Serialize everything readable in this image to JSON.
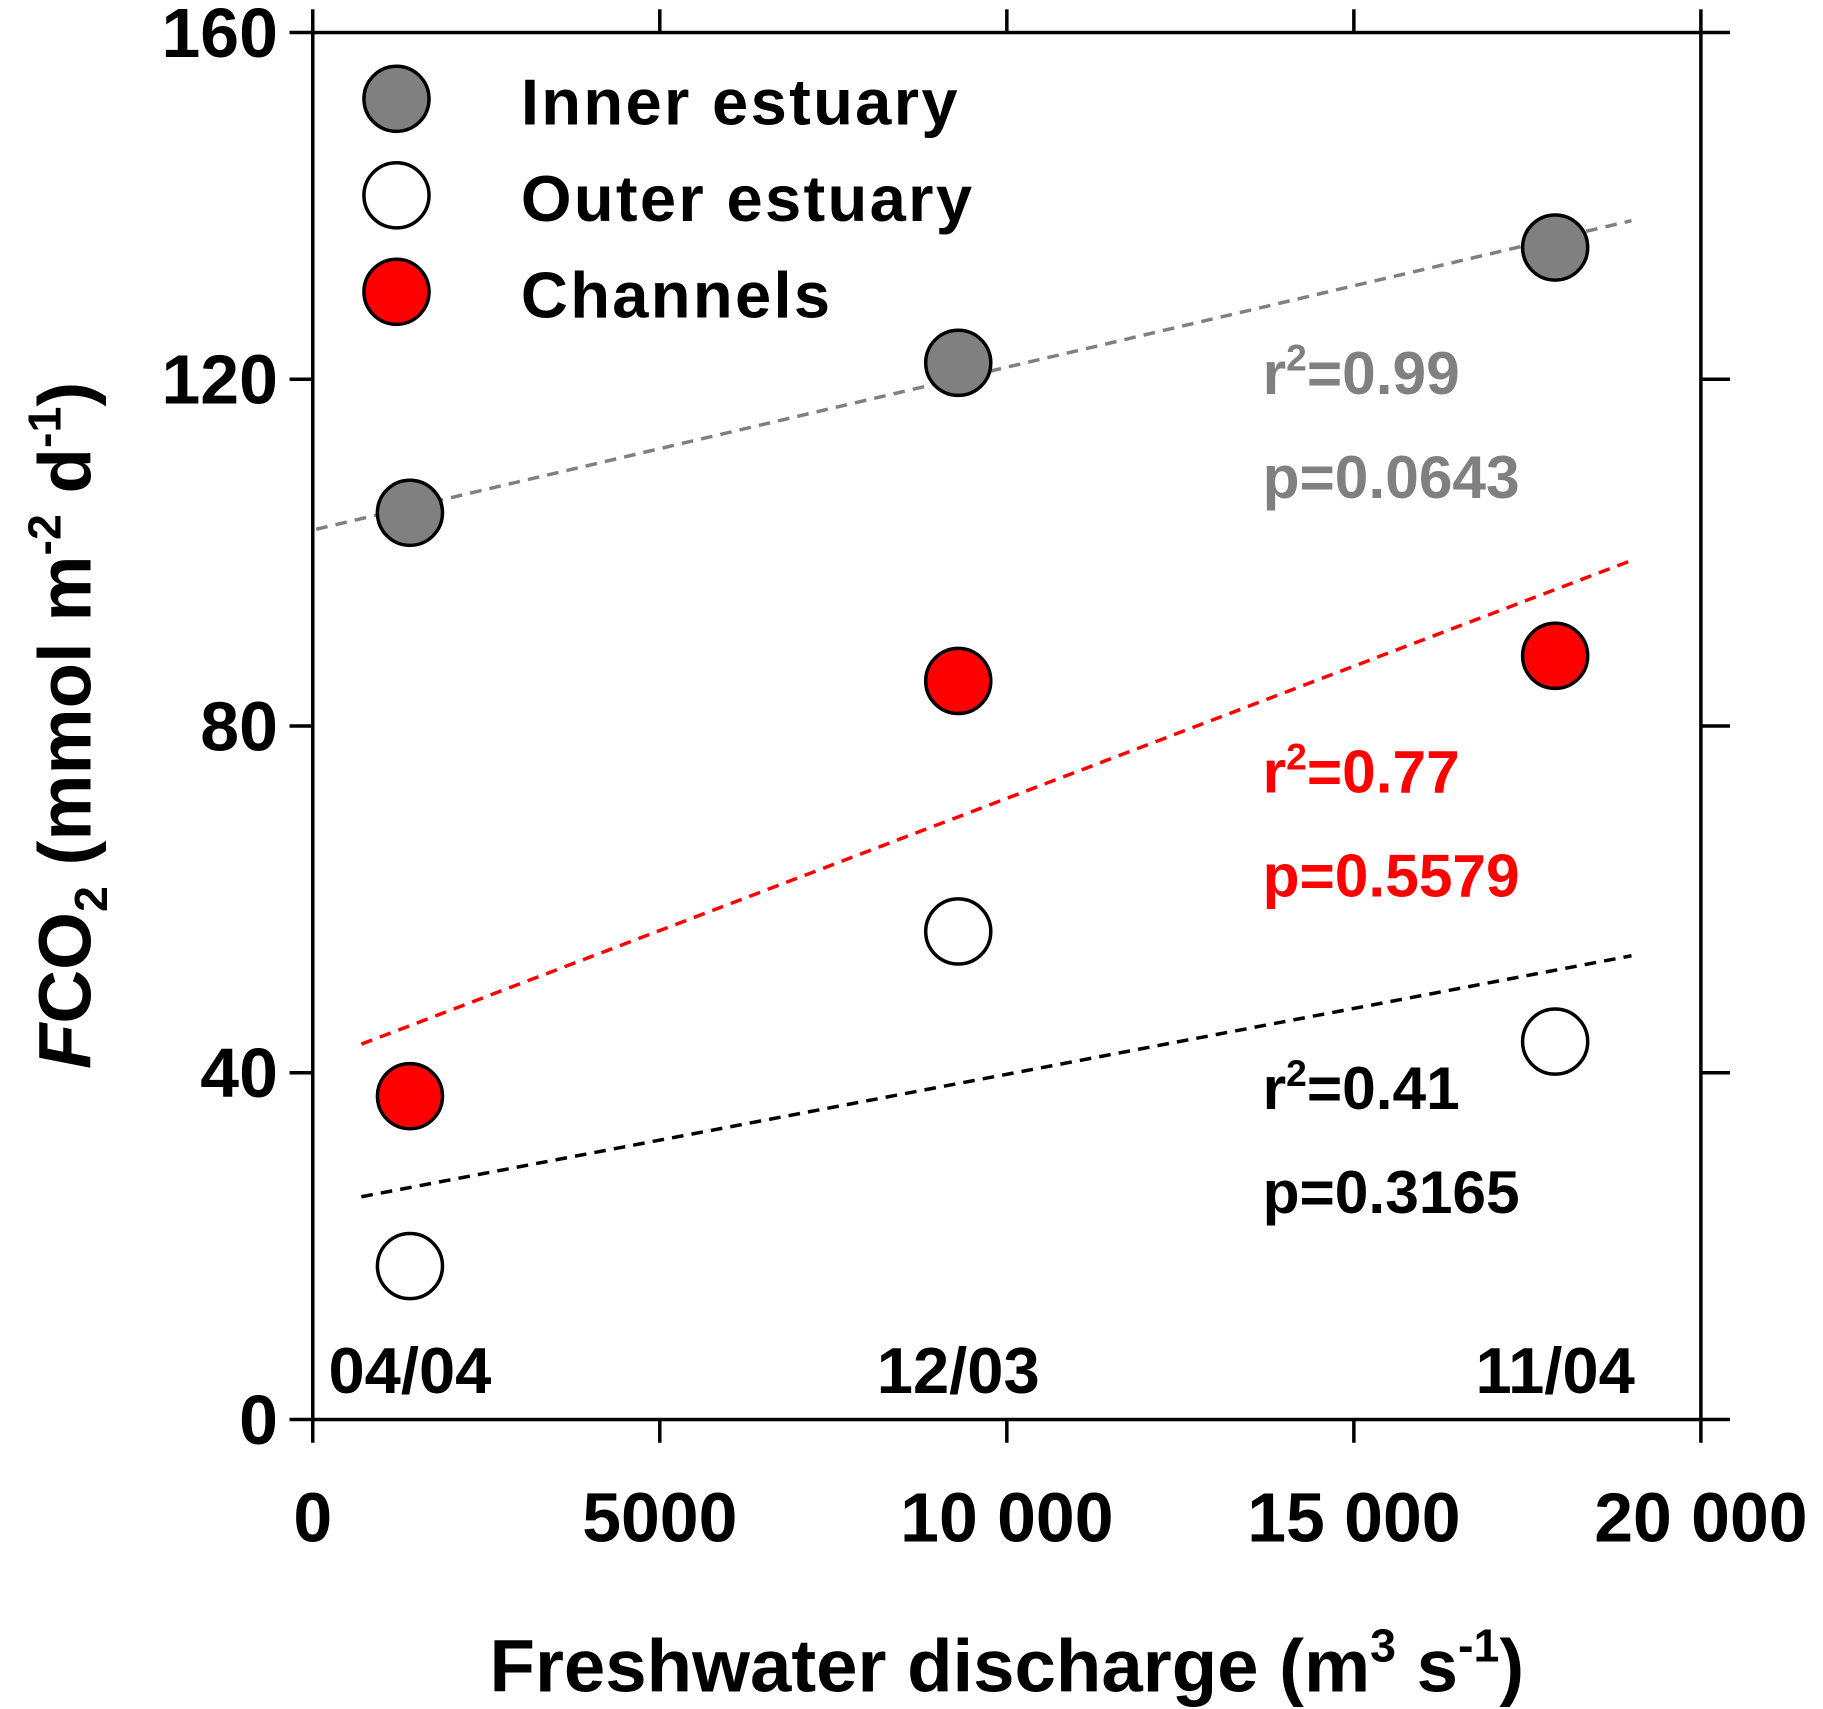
{
  "chart_data": {
    "type": "scatter",
    "xlabel": "Freshwater discharge (m",
    "xlabel_sup1": "3",
    "xlabel_mid": " s",
    "xlabel_sup2": "-1",
    "xlabel_end": ")",
    "ylabel_italic": "F",
    "ylabel_co": "CO",
    "ylabel_sub": "2",
    "ylabel_rest": " (mmol m",
    "ylabel_sup1": "-2",
    "ylabel_mid": " d",
    "ylabel_sup2": "-1",
    "ylabel_end": ")",
    "xlim": [
      0,
      20000
    ],
    "ylim": [
      0,
      160
    ],
    "x_ticks": [
      0,
      5000,
      10000,
      15000,
      20000
    ],
    "x_tick_labels": [
      "0",
      "5000",
      "10 000",
      "15 000",
      "20 000"
    ],
    "y_ticks": [
      0,
      40,
      80,
      120,
      160
    ],
    "y_tick_labels": [
      "0",
      "40",
      "80",
      "120",
      "160"
    ],
    "legend_position": "top-left",
    "date_labels": [
      {
        "x": 1400,
        "label": "04/04"
      },
      {
        "x": 9300,
        "label": "12/03"
      },
      {
        "x": 17900,
        "label": "11/04"
      }
    ],
    "series": [
      {
        "name": "Inner estuary",
        "fill": "#808080",
        "line_color": "#808080",
        "x": [
          1400,
          9300,
          17900
        ],
        "y": [
          104.6,
          121.9,
          135.2
        ],
        "trend": {
          "x": [
            50,
            19000
          ],
          "y": [
            102.7,
            138.3
          ]
        },
        "r2_label": "r",
        "r2_value": "=0.99",
        "p_label": "p=0.0643",
        "text_color": "#808080",
        "stats_y": [
          121,
          109
        ]
      },
      {
        "name": "Outer estuary",
        "fill": "#ffffff",
        "line_color": "#000000",
        "x": [
          1400,
          9300,
          17900
        ],
        "y": [
          17.7,
          56.3,
          43.6
        ],
        "trend": {
          "x": [
            700,
            19000
          ],
          "y": [
            25.7,
            53.5
          ]
        },
        "r2_label": "r",
        "r2_value": "=0.41",
        "p_label": "p=0.3165",
        "text_color": "#000000",
        "stats_y": [
          38.5,
          26.5
        ]
      },
      {
        "name": "Channels",
        "fill": "#ff0000",
        "line_color": "#ff0000",
        "x": [
          1400,
          9300,
          17900
        ],
        "y": [
          37.3,
          85.2,
          88.1
        ],
        "trend": {
          "x": [
            700,
            19000
          ],
          "y": [
            43.3,
            99.1
          ]
        },
        "r2_label": "r",
        "r2_value": "=0.77",
        "p_label": "p=0.5579",
        "text_color": "#ff0000",
        "stats_y": [
          75,
          63
        ]
      }
    ]
  }
}
